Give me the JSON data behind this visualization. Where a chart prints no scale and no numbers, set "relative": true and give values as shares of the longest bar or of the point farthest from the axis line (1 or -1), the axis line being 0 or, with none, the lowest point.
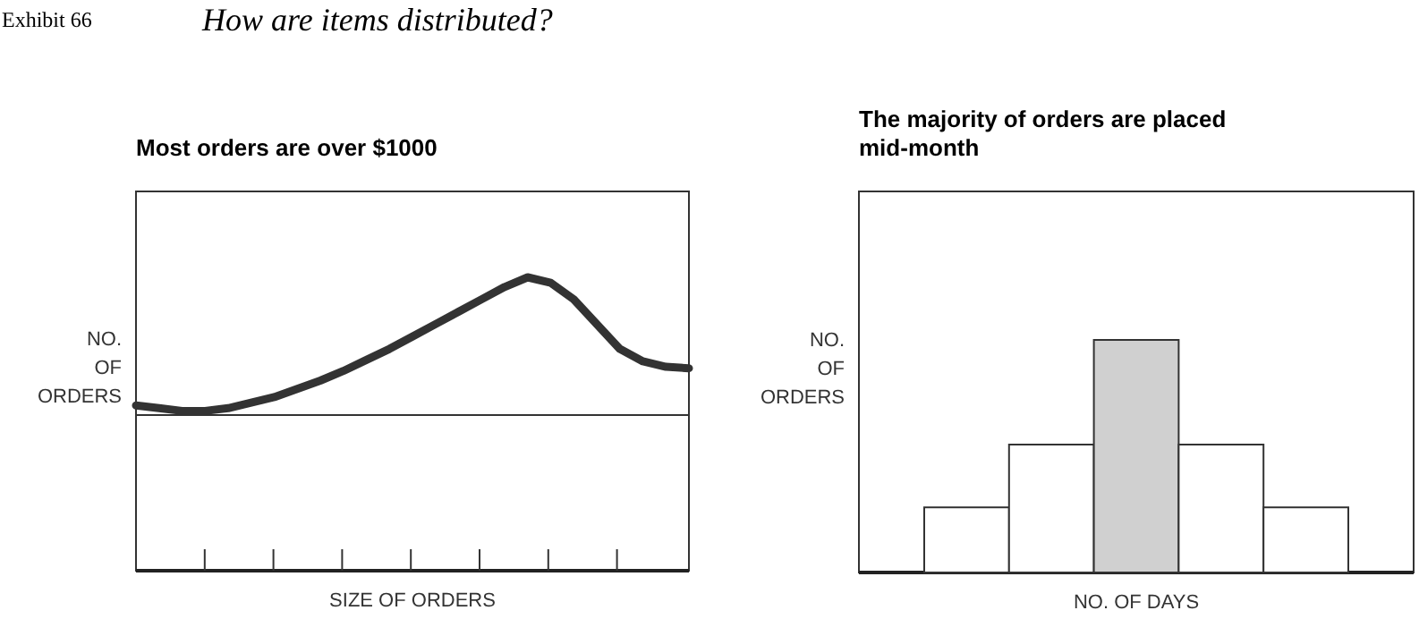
{
  "chart_data": [
    {
      "type": "line",
      "title": "Most orders are over $1000",
      "xlabel": "SIZE OF ORDERS",
      "ylabel": "NO.\nOF\nORDERS",
      "annotations": [
        "Exhibit 66",
        "How are items distributed?"
      ],
      "relative": true,
      "categories": [
        null,
        null,
        null,
        null,
        null,
        null,
        null,
        null,
        null,
        null,
        null,
        null,
        null,
        null,
        null,
        null,
        null,
        null,
        null,
        null,
        null,
        null,
        null,
        null,
        null
      ],
      "series": [
        {
          "color": "#333333",
          "values": [
            0.07,
            0.05,
            0.03,
            0.03,
            0.05,
            0.09,
            0.13,
            0.19,
            0.25,
            0.32,
            0.4,
            0.48,
            0.57,
            0.66,
            0.75,
            0.84,
            0.93,
            1,
            0.96,
            0.84,
            0.66,
            0.48,
            0.39,
            0.35,
            0.34
          ]
        }
      ]
    },
    {
      "type": "bar",
      "title": "The majority of orders are placed mid-month",
      "xlabel": "NO. OF DAYS",
      "ylabel": "NO.\nOF\nORDERS",
      "relative": true,
      "categories": [
        null,
        null,
        null,
        null,
        null
      ],
      "values": [
        0.28,
        0.55,
        1,
        0.55,
        0.28
      ],
      "colors": [
        "#ffffff",
        "#ffffff",
        "#d0d0d0",
        "#ffffff",
        "#ffffff"
      ]
    }
  ]
}
